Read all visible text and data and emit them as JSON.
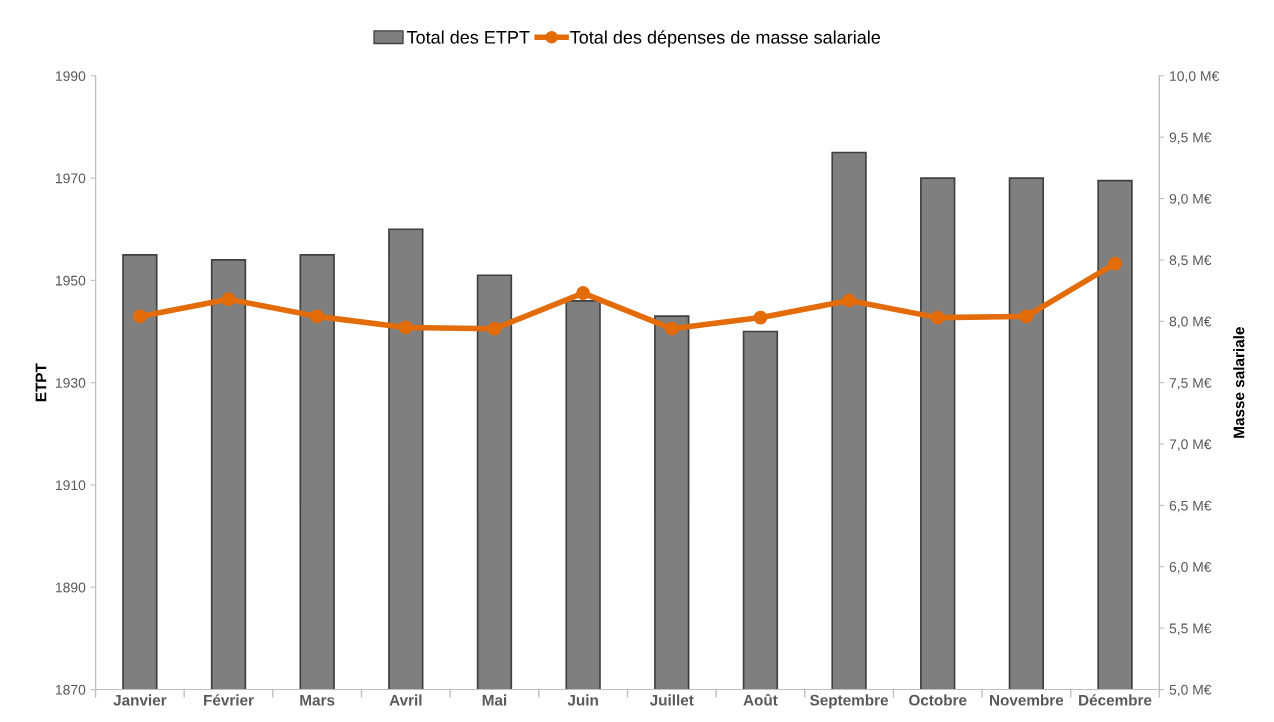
{
  "chart_data": {
    "type": "bar",
    "categories": [
      "Janvier",
      "Février",
      "Mars",
      "Avril",
      "Mai",
      "Juin",
      "Juillet",
      "Août",
      "Septembre",
      "Octobre",
      "Novembre",
      "Décembre"
    ],
    "series": [
      {
        "name": "Total des ETPT",
        "color": "#7f7f7f",
        "values": [
          1955,
          1954,
          1955,
          1960,
          1951,
          1946,
          1943,
          1940,
          1975,
          1970,
          1970,
          1969.5
        ]
      },
      {
        "name": "Total des dépenses de masse salariale",
        "type": "line",
        "axis": "y2",
        "color": "#e36c09",
        "marker": "circle",
        "values": [
          8.04,
          8.18,
          8.04,
          7.95,
          7.94,
          8.23,
          7.94,
          8.03,
          8.17,
          8.03,
          8.04,
          8.47
        ]
      }
    ],
    "ylabel": "ETPT",
    "y2label": "Masse salariale",
    "ylim": [
      1870,
      1990
    ],
    "yticks": [
      1870,
      1890,
      1910,
      1930,
      1950,
      1970,
      1990
    ],
    "y2lim": [
      5.0,
      10.0
    ],
    "y2ticks": [
      {
        "value": 5.0,
        "label": "5,0 M€"
      },
      {
        "value": 5.5,
        "label": "5,5 M€"
      },
      {
        "value": 6.0,
        "label": "6,0 M€"
      },
      {
        "value": 6.5,
        "label": "6,5 M€"
      },
      {
        "value": 7.0,
        "label": "7,0 M€"
      },
      {
        "value": 7.5,
        "label": "7,5 M€"
      },
      {
        "value": 8.0,
        "label": "8,0 M€"
      },
      {
        "value": 8.5,
        "label": "8,5 M€"
      },
      {
        "value": 9.0,
        "label": "9,0 M€"
      },
      {
        "value": 9.5,
        "label": "9,5 M€"
      },
      {
        "value": 10.0,
        "label": "10,0 M€"
      }
    ],
    "grid": false,
    "legend": "top"
  }
}
